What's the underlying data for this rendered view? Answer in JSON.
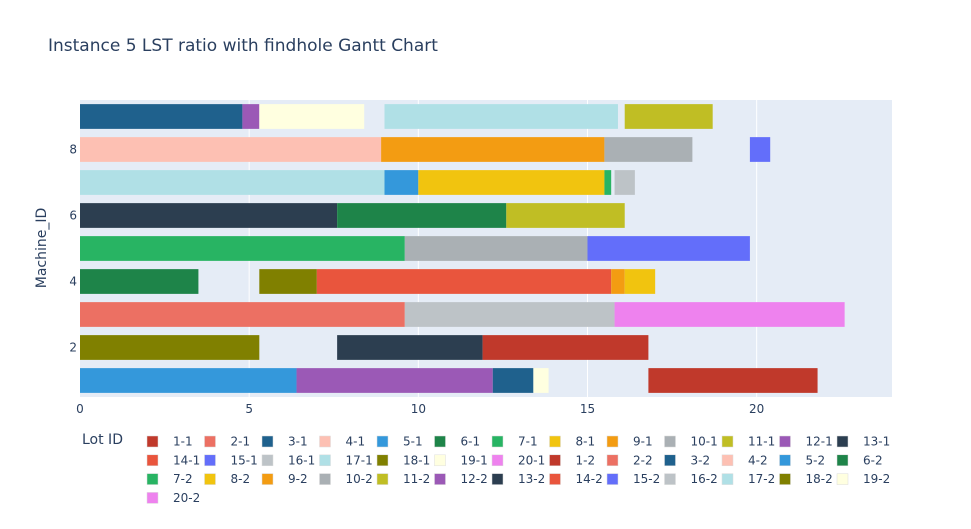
{
  "chart_data": {
    "type": "bar",
    "title": "Instance 5 LST ratio with findhole Gantt Chart",
    "xlabel": "",
    "ylabel": "Machine_ID",
    "xlim": [
      0,
      24
    ],
    "ylim": [
      0.5,
      9.5
    ],
    "x_ticks": [
      0,
      5,
      10,
      15,
      20
    ],
    "y_ticks": [
      2,
      4,
      6,
      8
    ],
    "grid": true,
    "legend_title": "Lot ID",
    "legend_position": "bottom",
    "legend": [
      {
        "name": "1-1",
        "color": "#C0392B"
      },
      {
        "name": "2-1",
        "color": "#EC7063"
      },
      {
        "name": "3-1",
        "color": "#1F618D"
      },
      {
        "name": "4-1",
        "color": "#FDC0B3"
      },
      {
        "name": "5-1",
        "color": "#3498DB"
      },
      {
        "name": "6-1",
        "color": "#1E8449"
      },
      {
        "name": "7-1",
        "color": "#28B463"
      },
      {
        "name": "8-1",
        "color": "#F1C40F"
      },
      {
        "name": "9-1",
        "color": "#F39C12"
      },
      {
        "name": "10-1",
        "color": "#AAB0B4"
      },
      {
        "name": "11-1",
        "color": "#C0BE24"
      },
      {
        "name": "12-1",
        "color": "#9B59B6"
      },
      {
        "name": "13-1",
        "color": "#2C3E50"
      },
      {
        "name": "14-1",
        "color": "#E9553D"
      },
      {
        "name": "15-1",
        "color": "#636EFA"
      },
      {
        "name": "16-1",
        "color": "#BDC3C7"
      },
      {
        "name": "17-1",
        "color": "#B0E0E6"
      },
      {
        "name": "18-1",
        "color": "#808000"
      },
      {
        "name": "19-1",
        "color": "#FFFFE0"
      },
      {
        "name": "20-1",
        "color": "#EE82EE"
      },
      {
        "name": "1-2",
        "color": "#C0392B"
      },
      {
        "name": "2-2",
        "color": "#EC7063"
      },
      {
        "name": "3-2",
        "color": "#1F618D"
      },
      {
        "name": "4-2",
        "color": "#FDC0B3"
      },
      {
        "name": "5-2",
        "color": "#3498DB"
      },
      {
        "name": "6-2",
        "color": "#1E8449"
      },
      {
        "name": "7-2",
        "color": "#28B463"
      },
      {
        "name": "8-2",
        "color": "#F1C40F"
      },
      {
        "name": "9-2",
        "color": "#F39C12"
      },
      {
        "name": "10-2",
        "color": "#AAB0B4"
      },
      {
        "name": "11-2",
        "color": "#C0BE24"
      },
      {
        "name": "12-2",
        "color": "#9B59B6"
      },
      {
        "name": "13-2",
        "color": "#2C3E50"
      },
      {
        "name": "14-2",
        "color": "#E9553D"
      },
      {
        "name": "15-2",
        "color": "#636EFA"
      },
      {
        "name": "16-2",
        "color": "#BDC3C7"
      },
      {
        "name": "17-2",
        "color": "#B0E0E6"
      },
      {
        "name": "18-2",
        "color": "#808000"
      },
      {
        "name": "19-2",
        "color": "#FFFFE0"
      },
      {
        "name": "20-2",
        "color": "#EE82EE"
      }
    ],
    "tasks": [
      {
        "machine": 1,
        "start": 0,
        "end": 6.4,
        "color": "#3498DB"
      },
      {
        "machine": 1,
        "start": 6.4,
        "end": 12.2,
        "color": "#9B59B6"
      },
      {
        "machine": 1,
        "start": 12.2,
        "end": 13.4,
        "color": "#1F618D"
      },
      {
        "machine": 1,
        "start": 13.4,
        "end": 13.85,
        "color": "#FFFFE0"
      },
      {
        "machine": 1,
        "start": 16.8,
        "end": 21.8,
        "color": "#C0392B"
      },
      {
        "machine": 2,
        "start": 0,
        "end": 5.3,
        "color": "#808000"
      },
      {
        "machine": 2,
        "start": 7.6,
        "end": 11.9,
        "color": "#2C3E50"
      },
      {
        "machine": 2,
        "start": 11.9,
        "end": 16.8,
        "color": "#C0392B"
      },
      {
        "machine": 3,
        "start": 0,
        "end": 9.6,
        "color": "#EC7063"
      },
      {
        "machine": 3,
        "start": 9.6,
        "end": 15.8,
        "color": "#BDC3C7"
      },
      {
        "machine": 3,
        "start": 15.8,
        "end": 22.6,
        "color": "#EE82EE"
      },
      {
        "machine": 4,
        "start": 0,
        "end": 3.5,
        "color": "#1E8449"
      },
      {
        "machine": 4,
        "start": 5.3,
        "end": 7.0,
        "color": "#808000"
      },
      {
        "machine": 4,
        "start": 7.0,
        "end": 15.7,
        "color": "#E9553D"
      },
      {
        "machine": 4,
        "start": 15.7,
        "end": 16.1,
        "color": "#F39C12"
      },
      {
        "machine": 4,
        "start": 16.1,
        "end": 17.0,
        "color": "#F1C40F"
      },
      {
        "machine": 5,
        "start": 0,
        "end": 9.6,
        "color": "#28B463"
      },
      {
        "machine": 5,
        "start": 9.6,
        "end": 15.0,
        "color": "#AAB0B4"
      },
      {
        "machine": 5,
        "start": 15.0,
        "end": 19.8,
        "color": "#636EFA"
      },
      {
        "machine": 6,
        "start": 0,
        "end": 7.6,
        "color": "#2C3E50"
      },
      {
        "machine": 6,
        "start": 7.6,
        "end": 12.6,
        "color": "#1E8449"
      },
      {
        "machine": 6,
        "start": 12.6,
        "end": 16.1,
        "color": "#C0BE24"
      },
      {
        "machine": 7,
        "start": 0,
        "end": 9.0,
        "color": "#B0E0E6"
      },
      {
        "machine": 7,
        "start": 9.0,
        "end": 10.0,
        "color": "#3498DB"
      },
      {
        "machine": 7,
        "start": 10.0,
        "end": 15.5,
        "color": "#F1C40F"
      },
      {
        "machine": 7,
        "start": 15.5,
        "end": 15.7,
        "color": "#28B463"
      },
      {
        "machine": 7,
        "start": 15.8,
        "end": 16.4,
        "color": "#BDC3C7"
      },
      {
        "machine": 8,
        "start": 0,
        "end": 8.9,
        "color": "#FDC0B3"
      },
      {
        "machine": 8,
        "start": 8.9,
        "end": 15.5,
        "color": "#F39C12"
      },
      {
        "machine": 8,
        "start": 15.5,
        "end": 18.1,
        "color": "#AAB0B4"
      },
      {
        "machine": 8,
        "start": 19.8,
        "end": 20.4,
        "color": "#636EFA"
      },
      {
        "machine": 9,
        "start": 0,
        "end": 4.8,
        "color": "#1F618D"
      },
      {
        "machine": 9,
        "start": 4.8,
        "end": 5.3,
        "color": "#9B59B6"
      },
      {
        "machine": 9,
        "start": 5.3,
        "end": 8.4,
        "color": "#FFFFE0"
      },
      {
        "machine": 9,
        "start": 9.0,
        "end": 15.9,
        "color": "#B0E0E6"
      },
      {
        "machine": 9,
        "start": 16.1,
        "end": 18.7,
        "color": "#C0BE24"
      }
    ]
  }
}
